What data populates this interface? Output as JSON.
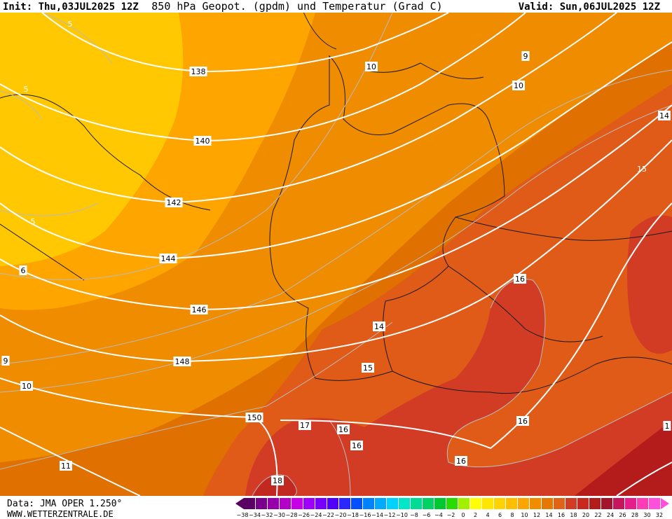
{
  "header": {
    "init": "Init: Thu,03JUL2025 12Z",
    "title": "850 hPa Geopot. (gpdm) und Temperatur (Grad C)",
    "valid": "Valid: Sun,06JUL2025 12Z"
  },
  "geopotential_labels": [
    "138",
    "140",
    "142",
    "144",
    "146",
    "148",
    "150"
  ],
  "temperature_labels": [
    "5",
    "5",
    "5",
    "6",
    "9",
    "10",
    "10",
    "9",
    "10",
    "11",
    "14",
    "15",
    "16",
    "14",
    "15",
    "17",
    "16",
    "16",
    "16",
    "16",
    "18",
    "1"
  ],
  "footer": {
    "data": "Data: JMA OPER 1.250°",
    "site": "WWW.WETTERZENTRALE.DE"
  },
  "legend": {
    "labels": [
      "−38",
      "−34",
      "−32",
      "−30",
      "−28",
      "−26",
      "−24",
      "−22",
      "−20",
      "−18",
      "−16",
      "−14",
      "−12",
      "−10",
      "−8",
      "−6",
      "−4",
      "−2",
      "0",
      "2",
      "4",
      "6",
      "8",
      "10",
      "12",
      "14",
      "16",
      "18",
      "20",
      "22",
      "24",
      "26",
      "28",
      "30",
      "32"
    ]
  }
}
